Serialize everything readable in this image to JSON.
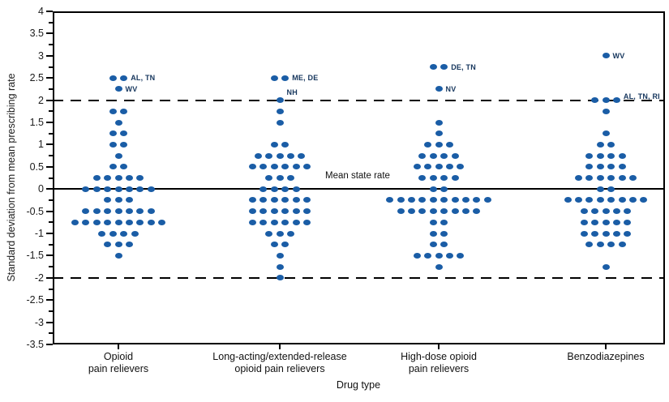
{
  "figure": {
    "y_axis_title": "Standard deviation from mean prescribing rate",
    "x_axis_title": "Drug type",
    "mean_line_label": "Mean state rate"
  },
  "colors": {
    "dot": "#1A5DA6",
    "annotation_text": "#16365D",
    "axis_text": "#1c1c1c",
    "line": "#000000",
    "background": "#ffffff"
  },
  "chart_data": {
    "type": "scatter",
    "subtype": "stacked-dot-distribution",
    "title": "",
    "xlabel": "Drug type",
    "ylabel": "Standard deviation from mean prescribing rate",
    "ylim": [
      -3.5,
      4
    ],
    "y_major_tick_step": 0.5,
    "y_minor_tick_step": 0.25,
    "grid": false,
    "y_tick_labels": [
      "4",
      "3.5",
      "3",
      "2.5",
      "2",
      "1.5",
      "1",
      "0.5",
      "0",
      "-0.5",
      "-1",
      "-1.5",
      "-2",
      "-2.5",
      "-3",
      "-3.5"
    ],
    "reference_lines": [
      {
        "value": 2,
        "style": "dashed"
      },
      {
        "value": 0,
        "style": "solid",
        "label": "Mean state rate"
      },
      {
        "value": -2,
        "style": "dashed"
      }
    ],
    "categories": [
      {
        "label_lines": [
          "Opioid",
          "pain relievers"
        ],
        "rows": [
          [
            2.5,
            2
          ],
          [
            2.25,
            1
          ],
          [
            1.75,
            2
          ],
          [
            1.5,
            1
          ],
          [
            1.25,
            2
          ],
          [
            1.0,
            2
          ],
          [
            0.75,
            1
          ],
          [
            0.5,
            2
          ],
          [
            0.25,
            5
          ],
          [
            0,
            7
          ],
          [
            -0.25,
            3
          ],
          [
            -0.5,
            7
          ],
          [
            -0.75,
            9
          ],
          [
            -1.0,
            4
          ],
          [
            -1.25,
            3
          ],
          [
            -1.5,
            1
          ]
        ]
      },
      {
        "label_lines": [
          "Long-acting/extended-release",
          "opioid pain relievers"
        ],
        "rows": [
          [
            2.5,
            2
          ],
          [
            2.0,
            1
          ],
          [
            1.75,
            1
          ],
          [
            1.5,
            1
          ],
          [
            1.0,
            2
          ],
          [
            0.75,
            5
          ],
          [
            0.5,
            6
          ],
          [
            0.25,
            3
          ],
          [
            0,
            4
          ],
          [
            -0.25,
            6
          ],
          [
            -0.5,
            6
          ],
          [
            -0.75,
            6
          ],
          [
            -1.0,
            3
          ],
          [
            -1.25,
            2
          ],
          [
            -1.5,
            1
          ],
          [
            -1.75,
            1
          ],
          [
            -2.0,
            1
          ]
        ]
      },
      {
        "label_lines": [
          "High-dose opioid",
          "pain relievers"
        ],
        "rows": [
          [
            2.75,
            2
          ],
          [
            2.25,
            1
          ],
          [
            1.5,
            1
          ],
          [
            1.25,
            1
          ],
          [
            1.0,
            3
          ],
          [
            0.75,
            4
          ],
          [
            0.5,
            5
          ],
          [
            0.25,
            4
          ],
          [
            0,
            2
          ],
          [
            -0.25,
            10
          ],
          [
            -0.5,
            8
          ],
          [
            -0.75,
            2
          ],
          [
            -1.0,
            2
          ],
          [
            -1.25,
            2
          ],
          [
            -1.5,
            5
          ],
          [
            -1.75,
            1
          ]
        ]
      },
      {
        "label_lines": [
          "Benzodiazepines"
        ],
        "rows": [
          [
            3.0,
            1
          ],
          [
            2.0,
            3
          ],
          [
            1.75,
            1
          ],
          [
            1.25,
            1
          ],
          [
            1.0,
            2
          ],
          [
            0.75,
            4
          ],
          [
            0.5,
            4
          ],
          [
            0.25,
            6
          ],
          [
            0,
            2
          ],
          [
            -0.25,
            8
          ],
          [
            -0.5,
            5
          ],
          [
            -0.75,
            5
          ],
          [
            -1.0,
            5
          ],
          [
            -1.25,
            4
          ],
          [
            -1.75,
            1
          ]
        ]
      }
    ],
    "annotations": [
      {
        "category": 0,
        "value": 2.5,
        "text": "AL, TN"
      },
      {
        "category": 0,
        "value": 2.25,
        "text": "WV"
      },
      {
        "category": 1,
        "value": 2.5,
        "text": "ME, DE"
      },
      {
        "category": 1,
        "value": 2.0,
        "text": "NH",
        "dy": -10
      },
      {
        "category": 2,
        "value": 2.75,
        "text": "DE, TN"
      },
      {
        "category": 2,
        "value": 2.25,
        "text": "NV"
      },
      {
        "category": 3,
        "value": 3.0,
        "text": "WV"
      },
      {
        "category": 3,
        "value": 2.0,
        "text": "AL, TN, RI",
        "dy": -5
      }
    ],
    "legend": null
  }
}
